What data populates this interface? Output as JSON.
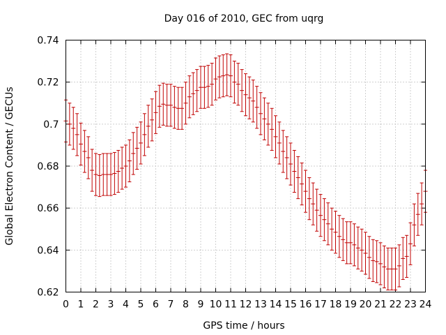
{
  "chart_data": {
    "type": "line",
    "title": "Day 016 of 2010, GEC from uqrg",
    "xlabel": "GPS time / hours",
    "ylabel": "Global Electron Content / GECUs",
    "xlim": [
      0,
      24
    ],
    "ylim": [
      0.62,
      0.74
    ],
    "grid": true,
    "x_ticks": [
      "0",
      "1",
      "2",
      "3",
      "4",
      "5",
      "6",
      "7",
      "8",
      "9",
      "10",
      "11",
      "12",
      "13",
      "14",
      "15",
      "16",
      "17",
      "18",
      "19",
      "20",
      "21",
      "22",
      "23",
      "24"
    ],
    "y_ticks": [
      "0.62",
      "0.64",
      "0.66",
      "0.68",
      "0.7",
      "0.72",
      "0.74"
    ],
    "series_color": "#c00000",
    "series": [
      {
        "name": "GEC",
        "x": [
          0,
          0.25,
          0.5,
          0.75,
          1,
          1.25,
          1.5,
          1.75,
          2,
          2.25,
          2.5,
          2.75,
          3,
          3.25,
          3.5,
          3.75,
          4,
          4.25,
          4.5,
          4.75,
          5,
          5.25,
          5.5,
          5.75,
          6,
          6.25,
          6.5,
          6.75,
          7,
          7.25,
          7.5,
          7.75,
          8,
          8.25,
          8.5,
          8.75,
          9,
          9.25,
          9.5,
          9.75,
          10,
          10.25,
          10.5,
          10.75,
          11,
          11.25,
          11.5,
          11.75,
          12,
          12.25,
          12.5,
          12.75,
          13,
          13.25,
          13.5,
          13.75,
          14,
          14.25,
          14.5,
          14.75,
          15,
          15.25,
          15.5,
          15.75,
          16,
          16.25,
          16.5,
          16.75,
          17,
          17.25,
          17.5,
          17.75,
          18,
          18.25,
          18.5,
          18.75,
          19,
          19.25,
          19.5,
          19.75,
          20,
          20.25,
          20.5,
          20.75,
          21,
          21.25,
          21.5,
          21.75,
          22,
          22.25,
          22.5,
          22.75,
          23,
          23.25,
          23.5,
          23.75,
          24
        ],
        "values": [
          0.7015,
          0.7,
          0.698,
          0.695,
          0.6905,
          0.687,
          0.684,
          0.678,
          0.676,
          0.6755,
          0.676,
          0.676,
          0.676,
          0.6765,
          0.6775,
          0.679,
          0.68,
          0.6825,
          0.686,
          0.6885,
          0.691,
          0.695,
          0.699,
          0.702,
          0.7055,
          0.7085,
          0.7095,
          0.709,
          0.709,
          0.708,
          0.7075,
          0.7075,
          0.71,
          0.713,
          0.7145,
          0.716,
          0.7175,
          0.7175,
          0.718,
          0.719,
          0.7215,
          0.7225,
          0.723,
          0.7235,
          0.723,
          0.72,
          0.719,
          0.716,
          0.714,
          0.7125,
          0.711,
          0.708,
          0.705,
          0.7025,
          0.7,
          0.6975,
          0.694,
          0.691,
          0.687,
          0.684,
          0.681,
          0.6775,
          0.6745,
          0.6715,
          0.668,
          0.6645,
          0.662,
          0.659,
          0.6565,
          0.6545,
          0.6525,
          0.65,
          0.6485,
          0.6465,
          0.645,
          0.6435,
          0.6435,
          0.6425,
          0.641,
          0.64,
          0.6385,
          0.6365,
          0.635,
          0.6345,
          0.6335,
          0.632,
          0.631,
          0.631,
          0.631,
          0.6325,
          0.636,
          0.637,
          0.643,
          0.652,
          0.657,
          0.662,
          0.668
        ],
        "errors": [
          0.01,
          0.01,
          0.01,
          0.01,
          0.01,
          0.01,
          0.01,
          0.01,
          0.01,
          0.01,
          0.01,
          0.01,
          0.01,
          0.01,
          0.01,
          0.01,
          0.01,
          0.01,
          0.01,
          0.01,
          0.01,
          0.01,
          0.01,
          0.01,
          0.01,
          0.01,
          0.01,
          0.01,
          0.01,
          0.01,
          0.01,
          0.01,
          0.01,
          0.01,
          0.01,
          0.01,
          0.01,
          0.01,
          0.01,
          0.01,
          0.01,
          0.01,
          0.01,
          0.01,
          0.01,
          0.01,
          0.01,
          0.01,
          0.01,
          0.01,
          0.01,
          0.01,
          0.01,
          0.01,
          0.01,
          0.01,
          0.01,
          0.01,
          0.01,
          0.01,
          0.01,
          0.01,
          0.01,
          0.01,
          0.01,
          0.01,
          0.01,
          0.01,
          0.01,
          0.01,
          0.01,
          0.01,
          0.01,
          0.01,
          0.01,
          0.01,
          0.01,
          0.01,
          0.01,
          0.01,
          0.01,
          0.01,
          0.01,
          0.01,
          0.01,
          0.01,
          0.01,
          0.01,
          0.01,
          0.01,
          0.01,
          0.01,
          0.01,
          0.01,
          0.01,
          0.01,
          0.01
        ]
      }
    ]
  }
}
